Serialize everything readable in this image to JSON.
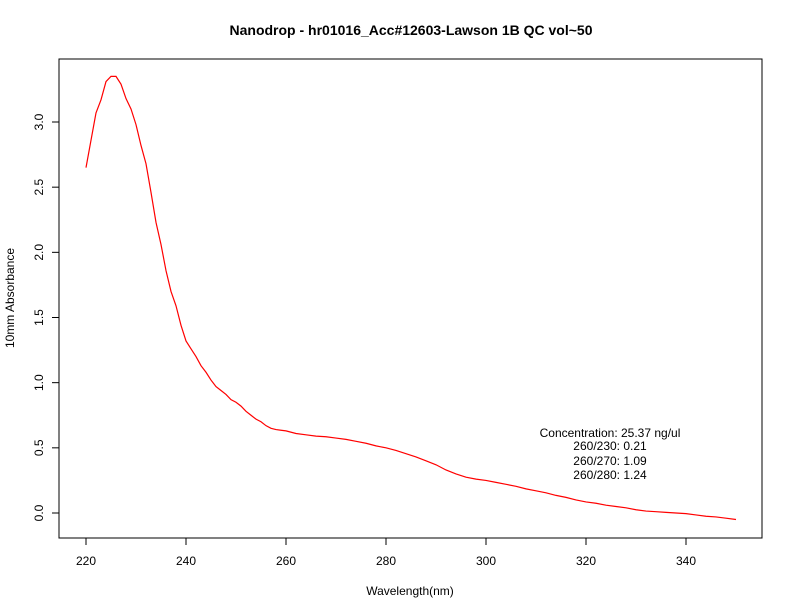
{
  "chart_data": {
    "type": "line",
    "title": "Nanodrop - hr01016_Acc#12603-Lawson 1B QC vol~50",
    "xlabel": "Wavelength(nm)",
    "ylabel": "10mm Absorbance",
    "xlim": [
      220,
      350
    ],
    "ylim": [
      -0.05,
      3.55
    ],
    "x_ticks": [
      220,
      240,
      260,
      280,
      300,
      320,
      340
    ],
    "x_tick_labels": [
      "220",
      "240",
      "260",
      "280",
      "300",
      "320",
      "340"
    ],
    "y_ticks": [
      0.0,
      0.5,
      1.0,
      1.5,
      2.0,
      2.5,
      3.0
    ],
    "y_tick_labels": [
      "0.0",
      "0.5",
      "1.0",
      "1.5",
      "2.0",
      "2.5",
      "3.0"
    ],
    "grid": false,
    "line_color": "#ff0000",
    "series": [
      {
        "x": [
          220,
          222,
          223,
          224,
          225,
          226,
          227,
          228,
          229,
          230,
          231,
          232,
          233,
          234,
          235,
          236,
          237,
          238,
          239,
          240,
          241,
          242,
          243,
          244,
          245,
          246,
          247,
          248,
          249,
          250,
          251,
          252,
          253,
          254,
          255,
          256,
          257,
          258,
          259,
          260,
          262,
          264,
          266,
          268,
          270,
          272,
          274,
          276,
          278,
          280,
          282,
          284,
          286,
          288,
          290,
          292,
          294,
          296,
          298,
          300,
          302,
          304,
          306,
          308,
          310,
          312,
          314,
          316,
          318,
          320,
          322,
          324,
          326,
          328,
          330,
          332,
          334,
          336,
          338,
          340,
          342,
          344,
          346,
          348,
          350
        ],
        "y": [
          2.65,
          3.07,
          3.17,
          3.31,
          3.35,
          3.35,
          3.29,
          3.18,
          3.1,
          2.98,
          2.82,
          2.68,
          2.46,
          2.23,
          2.06,
          1.86,
          1.7,
          1.59,
          1.44,
          1.32,
          1.26,
          1.2,
          1.13,
          1.08,
          1.02,
          0.97,
          0.94,
          0.91,
          0.87,
          0.85,
          0.82,
          0.78,
          0.75,
          0.72,
          0.7,
          0.67,
          0.65,
          0.64,
          0.635,
          0.63,
          0.61,
          0.6,
          0.59,
          0.585,
          0.575,
          0.565,
          0.55,
          0.535,
          0.515,
          0.5,
          0.48,
          0.455,
          0.43,
          0.4,
          0.37,
          0.33,
          0.3,
          0.275,
          0.26,
          0.25,
          0.235,
          0.22,
          0.205,
          0.185,
          0.17,
          0.155,
          0.135,
          0.12,
          0.1,
          0.085,
          0.075,
          0.06,
          0.05,
          0.04,
          0.025,
          0.015,
          0.01,
          0.005,
          0.0,
          -0.005,
          -0.015,
          -0.025,
          -0.03,
          -0.04,
          -0.05
        ]
      }
    ],
    "annotations": [
      "Concentration: 25.37 ng/ul",
      "260/230: 0.21",
      "260/270: 1.09",
      "260/280: 1.24"
    ]
  }
}
